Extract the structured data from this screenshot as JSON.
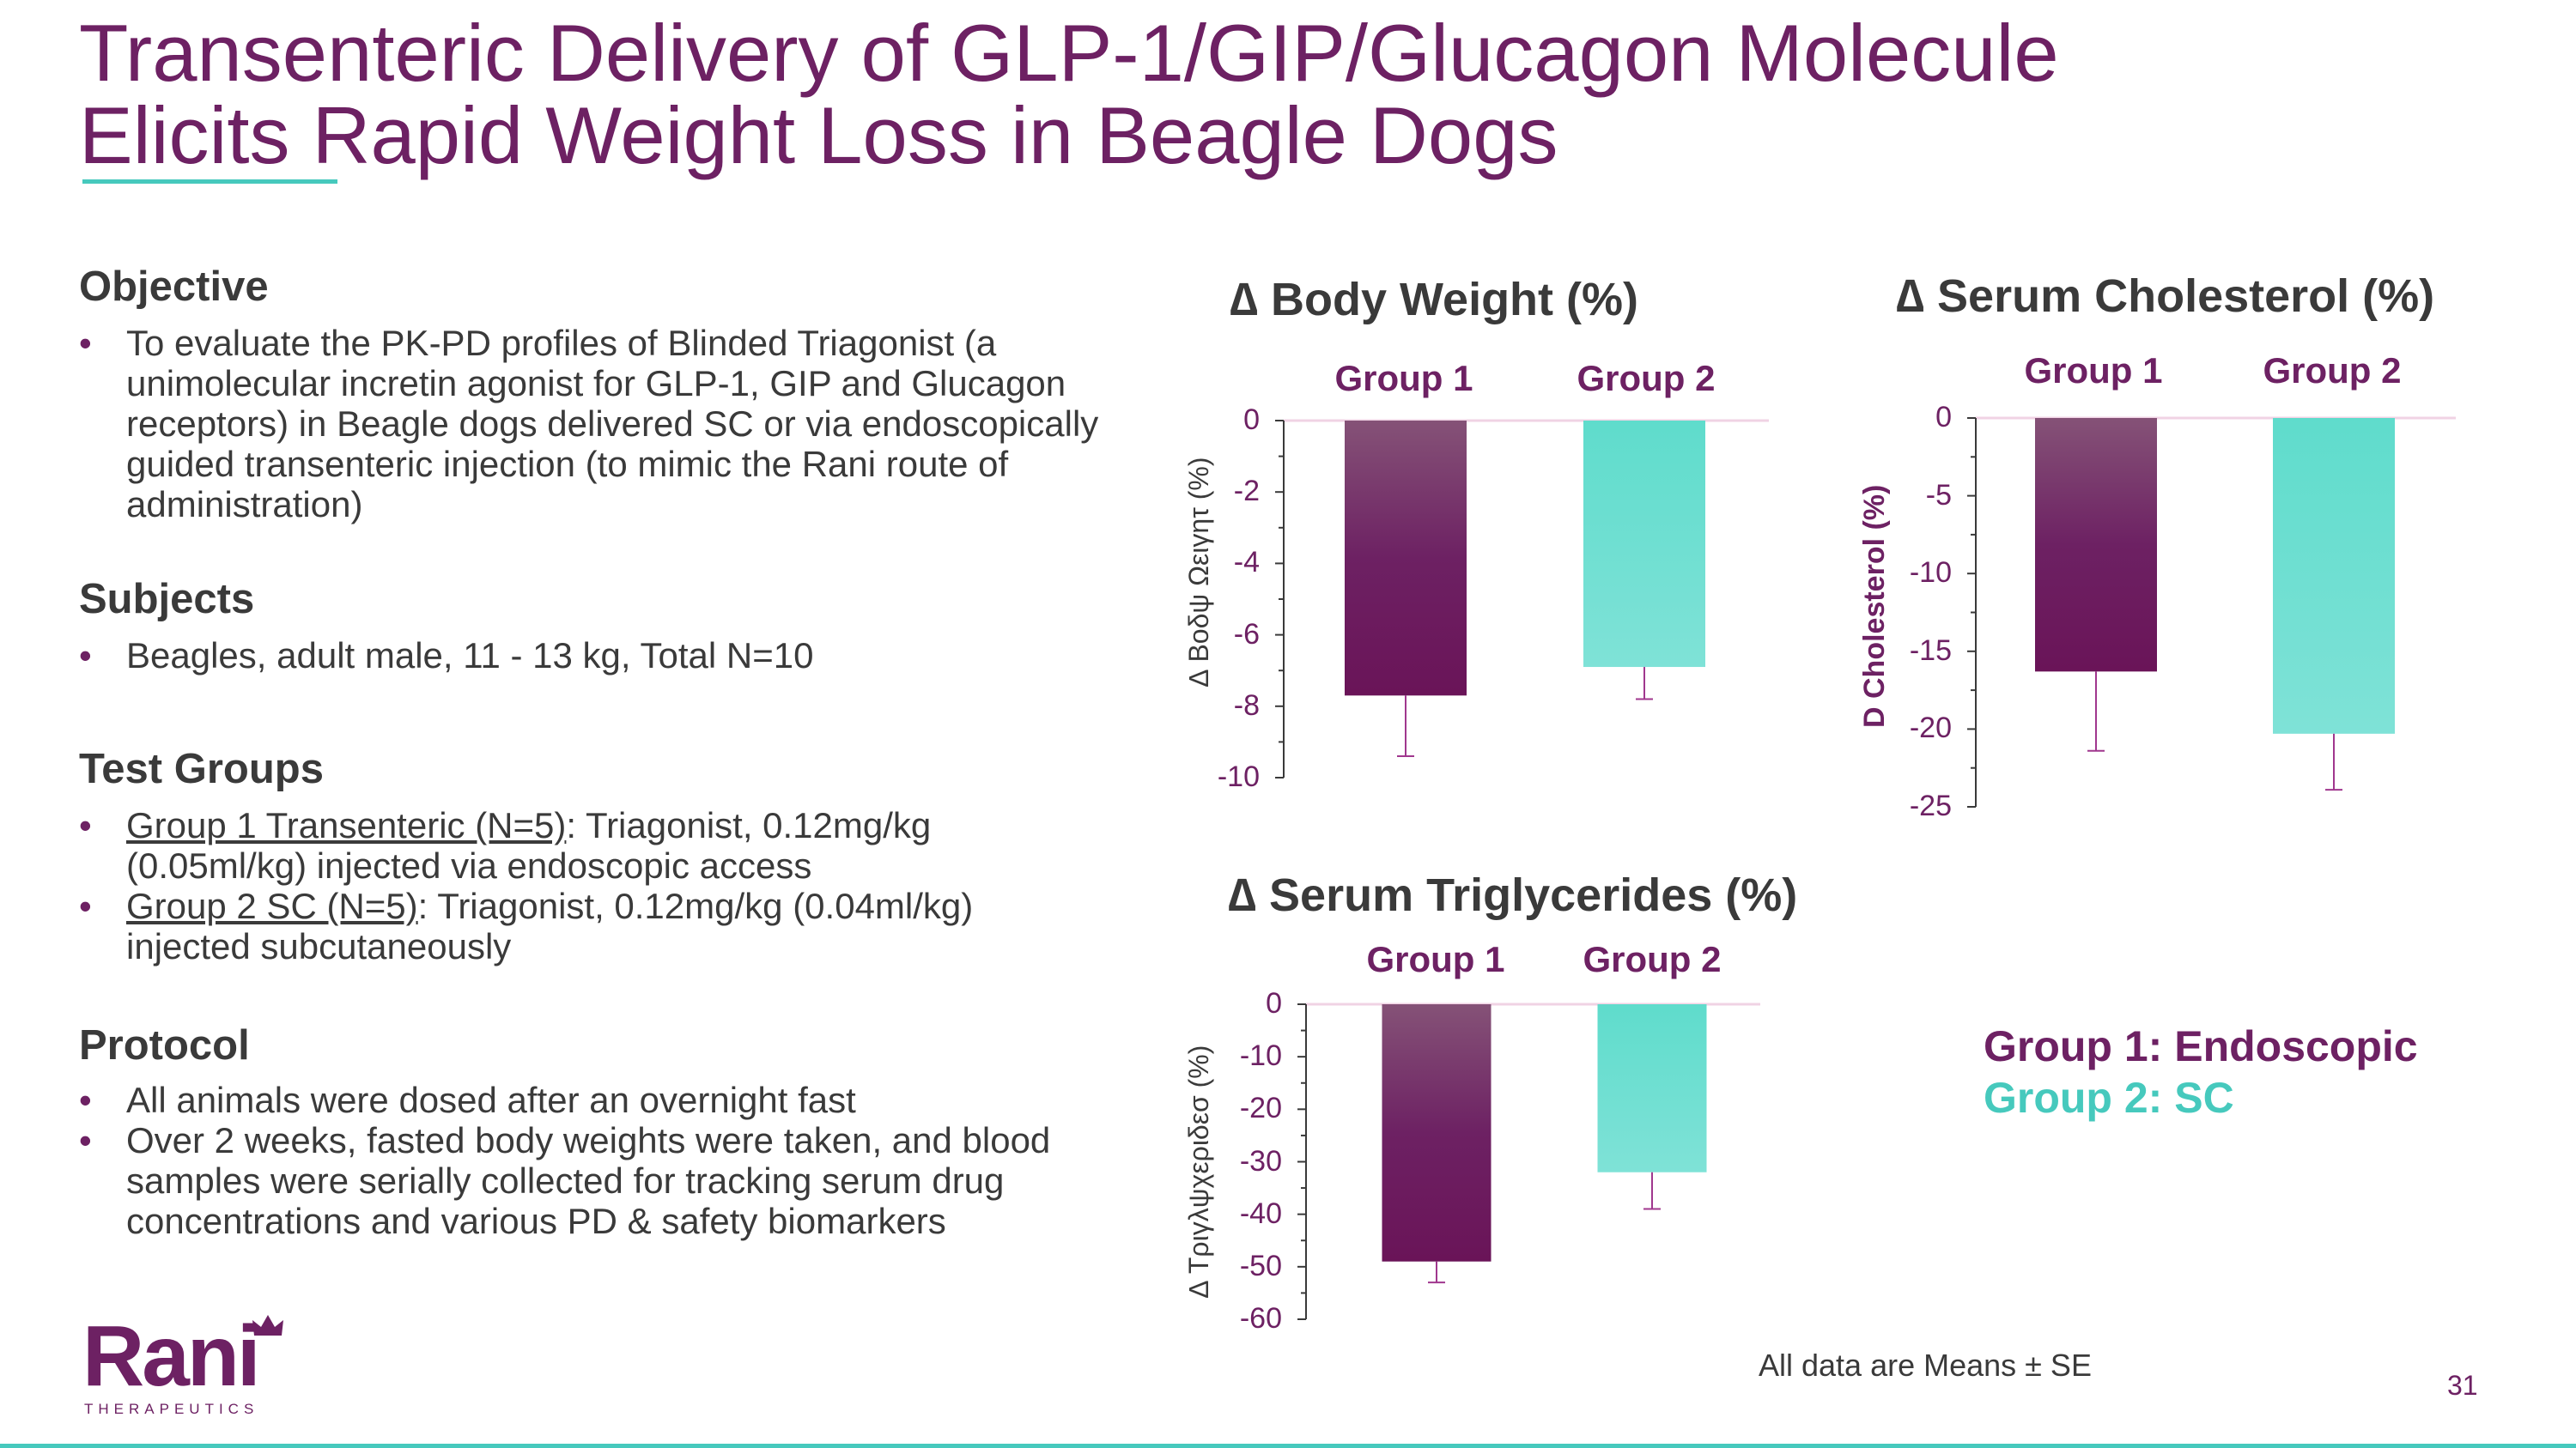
{
  "title": {
    "line1": "Transenteric Delivery of GLP-1/GIP/Glucagon Molecule",
    "line2": "Elicits Rapid Weight Loss in Beagle Dogs"
  },
  "objective": {
    "heading": "Objective",
    "bullet": "To evaluate the PK-PD profiles of Blinded Triagonist (a unimolecular incretin agonist for GLP-1, GIP and Glucagon receptors) in Beagle dogs delivered SC or via endoscopically guided transenteric injection (to mimic the Rani route of administration)"
  },
  "subjects": {
    "heading": "Subjects",
    "bullet": "Beagles, adult male, 11 - 13 kg, Total N=10"
  },
  "test_groups": {
    "heading": "Test Groups",
    "g1_label": "Group 1 Transenteric (N=5)",
    "g1_text": ": Triagonist, 0.12mg/kg (0.05ml/kg) injected via endoscopic access",
    "g2_label": "Group 2 SC (N=5)",
    "g2_text": ": Triagonist, 0.12mg/kg (0.04ml/kg) injected subcutaneously"
  },
  "protocol": {
    "heading": "Protocol",
    "bullet1": "All animals were dosed after an overnight fast",
    "bullet2": "Over 2 weeks, fasted body weights were taken, and blood samples were serially collected for tracking serum drug concentrations and various PD & safety biomarkers"
  },
  "bullet_char": "•",
  "colors": {
    "group1": "#6d2163",
    "group2": "#5fdccc",
    "accent": "#46c9bd",
    "title": "#6d2163"
  },
  "chart_data": [
    {
      "type": "bar",
      "title": "∆ Body Weight (%)",
      "categories": [
        "Group 1",
        "Group 2"
      ],
      "values": [
        -7.7,
        -6.9
      ],
      "errors": [
        1.7,
        0.9
      ],
      "ylabel": "∆ Βοδψ Ωειγητ (%)",
      "ylim": [
        -10,
        0
      ],
      "yticks": [
        0,
        -2,
        -4,
        -6,
        -8,
        -10
      ],
      "ytick_labels": [
        "0",
        "-2",
        "-4",
        "-6",
        "-8",
        "-10"
      ]
    },
    {
      "type": "bar",
      "title": "∆ Serum Cholesterol (%)",
      "categories": [
        "Group 1",
        "Group 2"
      ],
      "values": [
        -16.3,
        -20.3
      ],
      "errors": [
        5.1,
        3.6
      ],
      "ylabel": "D Cholesterol (%)",
      "ylim": [
        -25,
        0
      ],
      "yticks": [
        0,
        -5,
        -10,
        -15,
        -20,
        -25
      ],
      "ytick_labels": [
        "0",
        "-5",
        "-10",
        "-15",
        "-20",
        "-25"
      ]
    },
    {
      "type": "bar",
      "title": "∆ Serum Triglycerides (%)",
      "categories": [
        "Group 1",
        "Group 2"
      ],
      "values": [
        -49,
        -32
      ],
      "errors": [
        4,
        7
      ],
      "ylabel": "∆ Τριγλψχεριδεσ (%)",
      "ylim": [
        -60,
        0
      ],
      "yticks": [
        0,
        -10,
        -20,
        -30,
        -40,
        -50,
        -60
      ],
      "ytick_labels": [
        "0",
        "-10",
        "-20",
        "-30",
        "-40",
        "-50",
        "-60"
      ]
    }
  ],
  "legend": {
    "group1": "Group 1: Endoscopic",
    "group2": "Group 2: SC"
  },
  "footnote": "All data are Means ± SE",
  "page_number": "31",
  "logo": {
    "word": "Rani",
    "sub": "THERAPEUTICS"
  }
}
